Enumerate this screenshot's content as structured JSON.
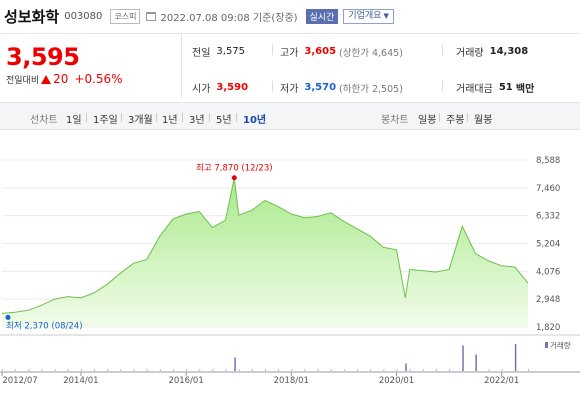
{
  "header": {
    "name": "성보화학",
    "code": "003080",
    "market": "코스피",
    "datetime": "2022.07.08 09:08",
    "basis": "기준(장중)",
    "realtime": "실시간",
    "company_info": "기업개요"
  },
  "price": {
    "current": "3,595",
    "change_label": "전일대비",
    "change_amount": "20",
    "change_percent": "+0.56%",
    "color_up": "#e00000"
  },
  "stats": {
    "prev_close": {
      "label": "전일",
      "value": "3,575"
    },
    "high": {
      "label": "고가",
      "value": "3,605",
      "sub": "(상한가 4,645)"
    },
    "volume": {
      "label": "거래량",
      "value": "14,308"
    },
    "open": {
      "label": "시가",
      "value": "3,590"
    },
    "low": {
      "label": "저가",
      "value": "3,570",
      "sub": "(하한가 2,505)"
    },
    "trade_value": {
      "label": "거래대금",
      "value": "51",
      "unit": "백만"
    }
  },
  "periods": {
    "line_title": "선차트",
    "line_items": [
      "1일",
      "1주일",
      "3개월",
      "1년",
      "3년",
      "5년",
      "10년"
    ],
    "active": "10년",
    "candle_title": "봉차트",
    "candle_items": [
      "일봉",
      "주봉",
      "월봉"
    ]
  },
  "chart_data": {
    "type": "area",
    "y_ticks": [
      "8,588",
      "7,460",
      "6,332",
      "5,204",
      "4,076",
      "2,948",
      "1,820"
    ],
    "ylim": [
      1820,
      8588
    ],
    "x_ticks": [
      "2012/07",
      "2014/01",
      "2016/01",
      "2018/01",
      "2020/01",
      "2022/01"
    ],
    "high_annotation": "최고 7,870 (12/23)",
    "low_annotation": "최저 2,370 (08/24)",
    "volume_legend": "거래량",
    "fill_color": "#c8f0a8",
    "line_color": "#6cc04a",
    "x": [
      "2012/07",
      "2012/10",
      "2013/01",
      "2013/04",
      "2013/07",
      "2013/10",
      "2014/01",
      "2014/04",
      "2014/07",
      "2014/10",
      "2015/01",
      "2015/04",
      "2015/07",
      "2015/10",
      "2016/01",
      "2016/04",
      "2016/07",
      "2016/10",
      "2016/12",
      "2017/01",
      "2017/04",
      "2017/07",
      "2017/10",
      "2018/01",
      "2018/04",
      "2018/07",
      "2018/10",
      "2019/01",
      "2019/04",
      "2019/07",
      "2019/10",
      "2020/01",
      "2020/03",
      "2020/04",
      "2020/07",
      "2020/10",
      "2021/01",
      "2021/04",
      "2021/07",
      "2021/10",
      "2022/01",
      "2022/04",
      "2022/07"
    ],
    "values": [
      2370,
      2420,
      2500,
      2700,
      2950,
      3050,
      3000,
      3200,
      3550,
      4000,
      4400,
      4550,
      5500,
      6200,
      6400,
      6500,
      5850,
      6150,
      7870,
      6350,
      6550,
      6950,
      6700,
      6400,
      6250,
      6300,
      6450,
      6100,
      5800,
      5500,
      5050,
      4950,
      3000,
      4150,
      4100,
      4050,
      4150,
      5900,
      4800,
      4500,
      4300,
      4250,
      3595
    ],
    "volume_spikes": [
      {
        "x": "2016/12",
        "v": 0.45
      },
      {
        "x": "2020/03",
        "v": 0.25
      },
      {
        "x": "2021/04",
        "v": 0.85
      },
      {
        "x": "2021/07",
        "v": 0.55
      },
      {
        "x": "2022/04",
        "v": 0.9
      }
    ]
  }
}
